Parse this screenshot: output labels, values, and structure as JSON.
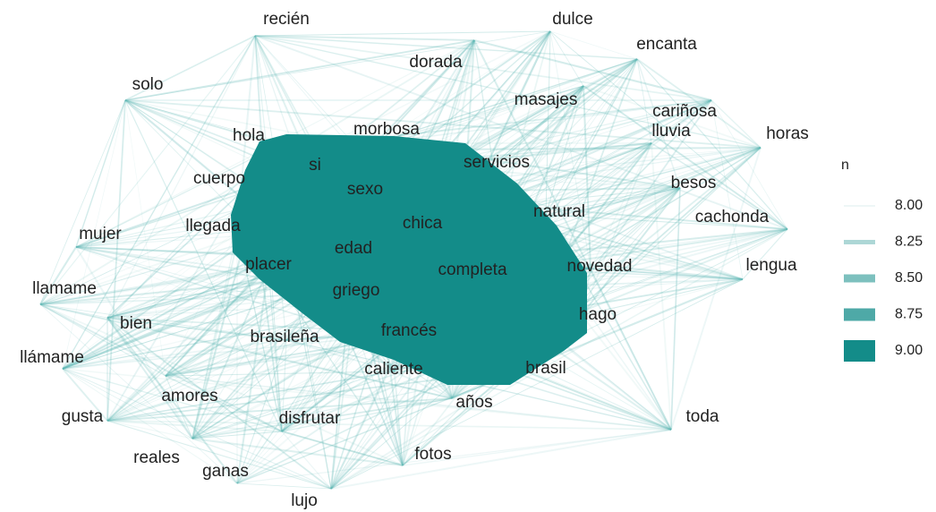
{
  "nodes": [
    {
      "label": "recién"
    },
    {
      "label": "dulce"
    },
    {
      "label": "encanta"
    },
    {
      "label": "dorada"
    },
    {
      "label": "solo"
    },
    {
      "label": "masajes"
    },
    {
      "label": "cariñosa"
    },
    {
      "label": "lluvia"
    },
    {
      "label": "horas"
    },
    {
      "label": "hola"
    },
    {
      "label": "morbosa"
    },
    {
      "label": "si"
    },
    {
      "label": "servicios"
    },
    {
      "label": "cuerpo"
    },
    {
      "label": "sexo"
    },
    {
      "label": "besos"
    },
    {
      "label": "natural"
    },
    {
      "label": "cachonda"
    },
    {
      "label": "chica"
    },
    {
      "label": "llegada"
    },
    {
      "label": "mujer"
    },
    {
      "label": "edad"
    },
    {
      "label": "lengua"
    },
    {
      "label": "placer"
    },
    {
      "label": "completa"
    },
    {
      "label": "novedad"
    },
    {
      "label": "llamame"
    },
    {
      "label": "griego"
    },
    {
      "label": "hago"
    },
    {
      "label": "bien"
    },
    {
      "label": "brasileña"
    },
    {
      "label": "francés"
    },
    {
      "label": "llámame"
    },
    {
      "label": "brasil"
    },
    {
      "label": "caliente"
    },
    {
      "label": "amores"
    },
    {
      "label": "años"
    },
    {
      "label": "gusta"
    },
    {
      "label": "disfrutar"
    },
    {
      "label": "toda"
    },
    {
      "label": "fotos"
    },
    {
      "label": "reales"
    },
    {
      "label": "ganas"
    },
    {
      "label": "lujo"
    }
  ],
  "legend": {
    "title": "n",
    "entries": [
      "8.00",
      "8.25",
      "8.50",
      "8.75",
      "9.00"
    ]
  }
}
